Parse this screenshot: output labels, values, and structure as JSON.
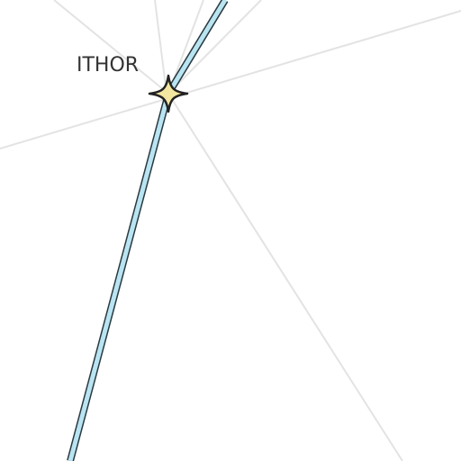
{
  "map": {
    "place": {
      "name": "ITHOR",
      "icon": "star-marker-icon",
      "marker_fill": "#f2e6a0",
      "marker_stroke": "#222222"
    },
    "route": {
      "fill": "#b9e4f2",
      "casing": "#2a3a40"
    },
    "background_line_color": "#e3e3e3",
    "background": "#ffffff"
  }
}
